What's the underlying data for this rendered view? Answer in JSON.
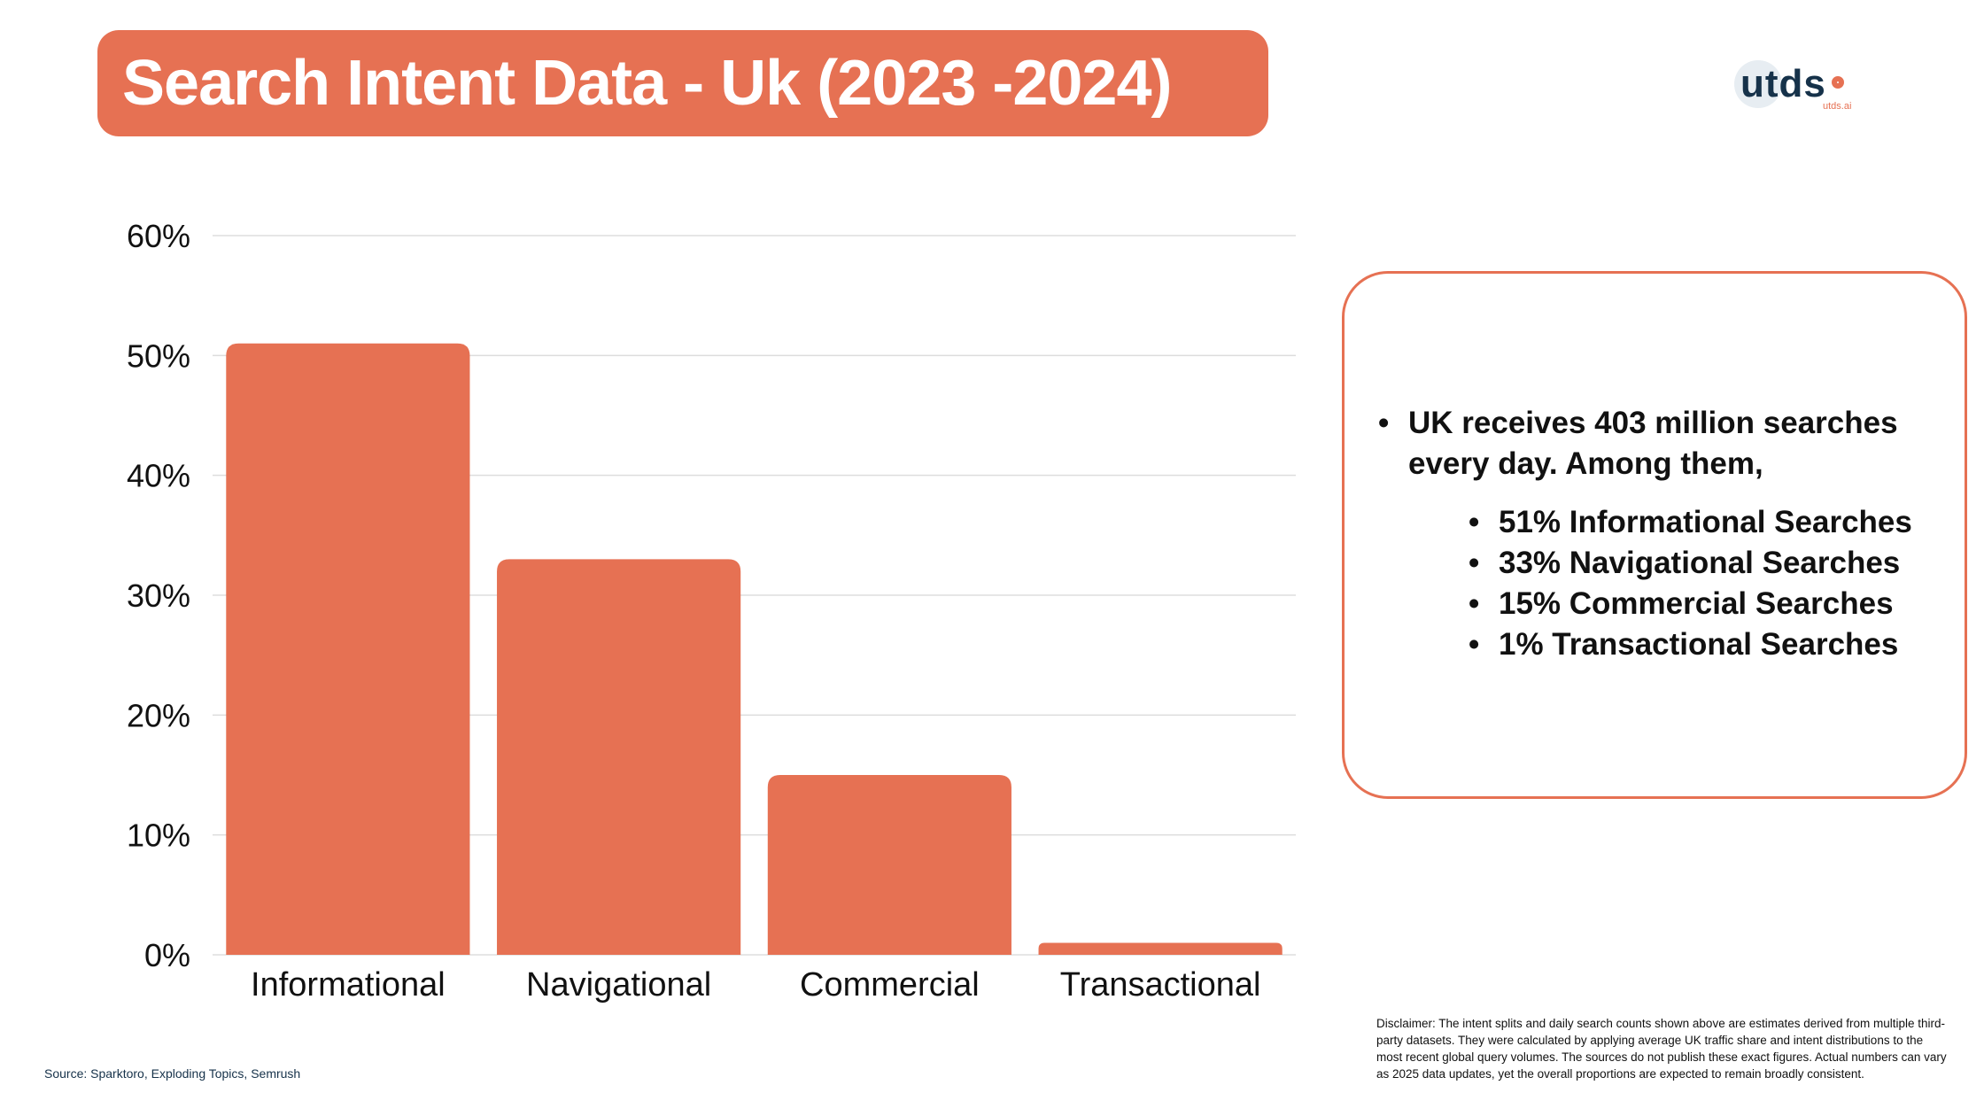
{
  "header": {
    "title": "Search Intent Data - Uk (2023 -2024)"
  },
  "logo": {
    "text": "utds",
    "sub": "utds.ai",
    "accent": "#E67153"
  },
  "colors": {
    "bar": "#E67153",
    "grid": "#dddddd",
    "border": "#E67153"
  },
  "chart_data": {
    "type": "bar",
    "categories": [
      "Informational",
      "Navigational",
      "Commercial",
      "Transactional"
    ],
    "values": [
      51,
      33,
      15,
      1
    ],
    "ylim": [
      0,
      60
    ],
    "yticks": [
      0,
      10,
      20,
      30,
      40,
      50,
      60
    ],
    "ytick_labels": [
      "0%",
      "10%",
      "20%",
      "30%",
      "40%",
      "50%",
      "60%"
    ],
    "grid": true,
    "title": "",
    "xlabel": "",
    "ylabel": ""
  },
  "info": {
    "main": "UK receives 403 million searches every day. Among them,",
    "items": [
      "51% Informational Searches",
      "33% Navigational Searches",
      "15% Commercial Searches",
      "1% Transactional Searches"
    ]
  },
  "footer": {
    "source": "Source: Sparktoro, Exploding Topics, Semrush",
    "disclaimer": "Disclaimer: The intent splits and daily search counts shown above are estimates derived from multiple third-party datasets. They were calculated by applying average UK traffic share and intent distributions to the most recent global query volumes. The sources do not publish these exact figures. Actual numbers can vary as 2025 data updates, yet the overall proportions are expected to remain broadly consistent."
  }
}
